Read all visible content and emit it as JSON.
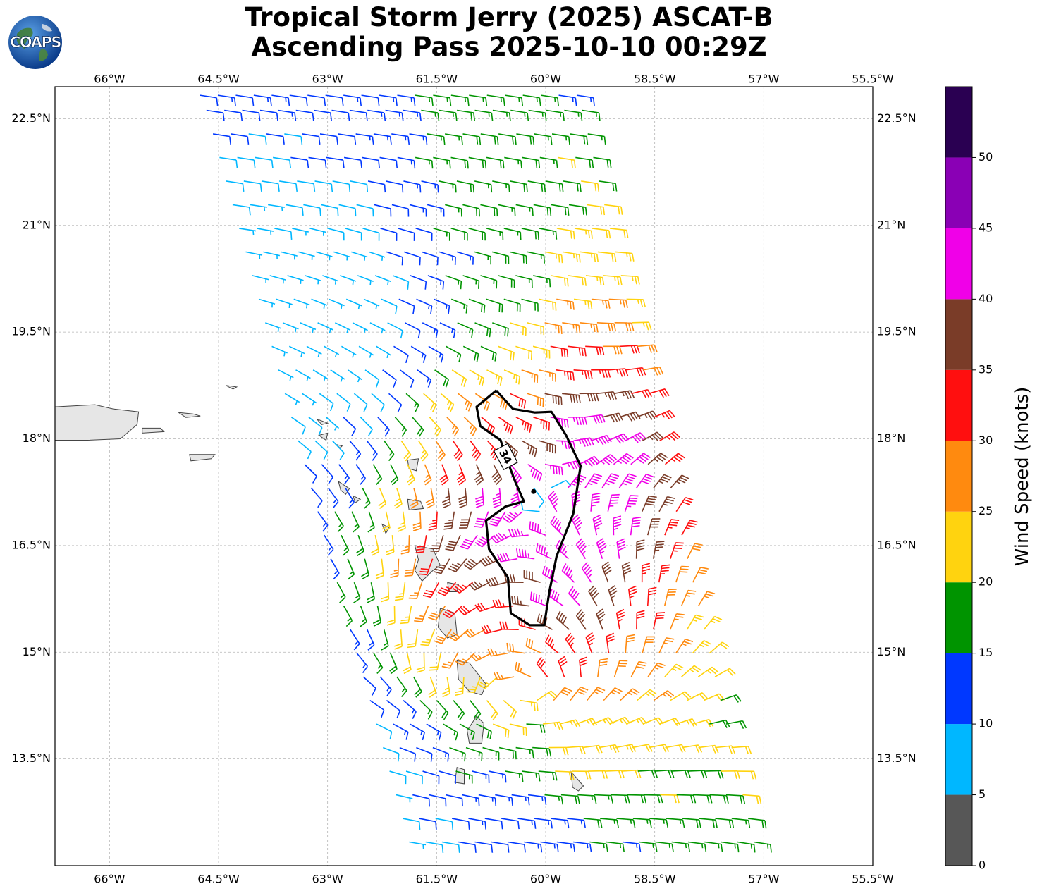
{
  "title": {
    "line1": "Tropical Storm Jerry (2025) ASCAT-B",
    "line2": "Ascending Pass 2025-10-10 00:29Z"
  },
  "logo": {
    "text": "COAPS",
    "icon": "globe-icon"
  },
  "map": {
    "lon_range": [
      -66.75,
      -55.5
    ],
    "lat_range": [
      12.0,
      22.95
    ],
    "lon_ticks": [
      {
        "value": -66.0,
        "label": "66°W"
      },
      {
        "value": -64.5,
        "label": "64.5°W"
      },
      {
        "value": -63.0,
        "label": "63°W"
      },
      {
        "value": -61.5,
        "label": "61.5°W"
      },
      {
        "value": -60.0,
        "label": "60°W"
      },
      {
        "value": -58.5,
        "label": "58.5°W"
      },
      {
        "value": -57.0,
        "label": "57°W"
      },
      {
        "value": -55.5,
        "label": "55.5°W"
      }
    ],
    "lat_ticks": [
      {
        "value": 22.5,
        "label": "22.5°N"
      },
      {
        "value": 21.0,
        "label": "21°N"
      },
      {
        "value": 19.5,
        "label": "19.5°N"
      },
      {
        "value": 18.0,
        "label": "18°N"
      },
      {
        "value": 16.5,
        "label": "16.5°N"
      },
      {
        "value": 15.0,
        "label": "15°N"
      },
      {
        "value": 13.5,
        "label": "13.5°N"
      }
    ],
    "gridlines": true,
    "contour": {
      "label": "34",
      "level_knots": 34,
      "color": "#000000",
      "path": [
        [
          -60.68,
          18.68
        ],
        [
          -60.45,
          18.42
        ],
        [
          -60.15,
          18.37
        ],
        [
          -59.92,
          18.38
        ],
        [
          -59.72,
          18.05
        ],
        [
          -59.52,
          17.62
        ],
        [
          -59.62,
          16.95
        ],
        [
          -59.85,
          16.35
        ],
        [
          -59.95,
          15.85
        ],
        [
          -60.02,
          15.38
        ],
        [
          -60.22,
          15.38
        ],
        [
          -60.48,
          15.55
        ],
        [
          -60.52,
          16.05
        ],
        [
          -60.78,
          16.45
        ],
        [
          -60.82,
          16.85
        ],
        [
          -60.55,
          17.05
        ],
        [
          -60.3,
          17.12
        ],
        [
          -60.42,
          17.4
        ],
        [
          -60.55,
          17.75
        ],
        [
          -60.62,
          17.98
        ],
        [
          -60.9,
          18.18
        ],
        [
          -60.95,
          18.45
        ],
        [
          -60.68,
          18.68
        ]
      ],
      "label_at": [
        -60.55,
        17.75
      ],
      "center": [
        -60.05,
        17.18
      ]
    },
    "wind_barbs": {
      "units": "knots",
      "swath": {
        "bottom_left": [
          -61.9,
          12.0
        ],
        "bottom_right": [
          -56.95,
          12.0
        ],
        "top_left": [
          -64.88,
          22.95
        ],
        "top_right": [
          -59.45,
          22.95
        ]
      }
    },
    "land": [
      {
        "name": "Puerto Rico",
        "points": [
          [
            -66.75,
            18.45
          ],
          [
            -66.2,
            18.48
          ],
          [
            -65.95,
            18.42
          ],
          [
            -65.6,
            18.38
          ],
          [
            -65.62,
            18.2
          ],
          [
            -65.85,
            18.0
          ],
          [
            -66.3,
            17.98
          ],
          [
            -66.75,
            17.98
          ]
        ]
      },
      {
        "name": "Vieques",
        "points": [
          [
            -65.55,
            18.15
          ],
          [
            -65.3,
            18.15
          ],
          [
            -65.25,
            18.1
          ],
          [
            -65.55,
            18.08
          ]
        ]
      },
      {
        "name": "St Croix",
        "points": [
          [
            -64.9,
            17.78
          ],
          [
            -64.55,
            17.78
          ],
          [
            -64.6,
            17.72
          ],
          [
            -64.88,
            17.69
          ]
        ]
      },
      {
        "name": "Virgin Islands",
        "points": [
          [
            -65.05,
            18.37
          ],
          [
            -64.85,
            18.35
          ],
          [
            -64.75,
            18.32
          ],
          [
            -64.95,
            18.3
          ]
        ]
      },
      {
        "name": "Anegada",
        "points": [
          [
            -64.4,
            18.75
          ],
          [
            -64.25,
            18.73
          ],
          [
            -64.3,
            18.7
          ]
        ]
      },
      {
        "name": "Anguilla",
        "points": [
          [
            -63.15,
            18.28
          ],
          [
            -63.0,
            18.22
          ],
          [
            -63.08,
            18.2
          ]
        ]
      },
      {
        "name": "St Martin",
        "points": [
          [
            -63.12,
            18.05
          ],
          [
            -63.0,
            18.08
          ],
          [
            -63.02,
            17.98
          ]
        ]
      },
      {
        "name": "St Barts",
        "points": [
          [
            -62.88,
            17.92
          ],
          [
            -62.8,
            17.9
          ],
          [
            -62.83,
            17.87
          ]
        ]
      },
      {
        "name": "Barbuda",
        "points": [
          [
            -61.9,
            17.7
          ],
          [
            -61.75,
            17.72
          ],
          [
            -61.78,
            17.55
          ],
          [
            -61.88,
            17.58
          ]
        ]
      },
      {
        "name": "Antigua",
        "points": [
          [
            -61.9,
            17.15
          ],
          [
            -61.72,
            17.12
          ],
          [
            -61.68,
            17.02
          ],
          [
            -61.88,
            17.0
          ]
        ]
      },
      {
        "name": "St Kitts",
        "points": [
          [
            -62.85,
            17.4
          ],
          [
            -62.7,
            17.3
          ],
          [
            -62.75,
            17.22
          ],
          [
            -62.82,
            17.28
          ]
        ]
      },
      {
        "name": "Nevis",
        "points": [
          [
            -62.65,
            17.2
          ],
          [
            -62.55,
            17.15
          ],
          [
            -62.62,
            17.1
          ]
        ]
      },
      {
        "name": "Montserrat",
        "points": [
          [
            -62.25,
            16.8
          ],
          [
            -62.15,
            16.75
          ],
          [
            -62.2,
            16.67
          ]
        ]
      },
      {
        "name": "Guadeloupe",
        "points": [
          [
            -61.8,
            16.5
          ],
          [
            -61.55,
            16.45
          ],
          [
            -61.45,
            16.22
          ],
          [
            -61.55,
            16.15
          ],
          [
            -61.7,
            16.0
          ],
          [
            -61.8,
            16.15
          ],
          [
            -61.75,
            16.3
          ]
        ]
      },
      {
        "name": "Marie-Galante",
        "points": [
          [
            -61.35,
            15.98
          ],
          [
            -61.2,
            15.95
          ],
          [
            -61.22,
            15.85
          ],
          [
            -61.33,
            15.85
          ]
        ]
      },
      {
        "name": "Dominica",
        "points": [
          [
            -61.45,
            15.62
          ],
          [
            -61.25,
            15.55
          ],
          [
            -61.22,
            15.25
          ],
          [
            -61.35,
            15.2
          ],
          [
            -61.48,
            15.35
          ]
        ]
      },
      {
        "name": "Martinique",
        "points": [
          [
            -61.22,
            14.88
          ],
          [
            -61.05,
            14.85
          ],
          [
            -60.82,
            14.55
          ],
          [
            -60.88,
            14.4
          ],
          [
            -61.05,
            14.45
          ],
          [
            -61.2,
            14.62
          ]
        ]
      },
      {
        "name": "St Lucia",
        "points": [
          [
            -60.95,
            14.1
          ],
          [
            -60.85,
            14.0
          ],
          [
            -60.88,
            13.72
          ],
          [
            -61.05,
            13.72
          ],
          [
            -61.08,
            13.9
          ]
        ]
      },
      {
        "name": "St Vincent",
        "points": [
          [
            -61.22,
            13.38
          ],
          [
            -61.12,
            13.35
          ],
          [
            -61.12,
            13.15
          ],
          [
            -61.25,
            13.17
          ]
        ]
      },
      {
        "name": "Barbados",
        "points": [
          [
            -59.65,
            13.32
          ],
          [
            -59.48,
            13.12
          ],
          [
            -59.55,
            13.05
          ],
          [
            -59.63,
            13.1
          ]
        ]
      }
    ]
  },
  "colorbar": {
    "label": "Wind Speed (knots)",
    "bins": [
      {
        "from": 0,
        "to": 5,
        "color": "#575757"
      },
      {
        "from": 5,
        "to": 10,
        "color": "#00b7ff"
      },
      {
        "from": 10,
        "to": 15,
        "color": "#0038ff"
      },
      {
        "from": 15,
        "to": 20,
        "color": "#009400"
      },
      {
        "from": 20,
        "to": 25,
        "color": "#ffd30f"
      },
      {
        "from": 25,
        "to": 30,
        "color": "#ff8a0f"
      },
      {
        "from": 30,
        "to": 35,
        "color": "#ff0f0f"
      },
      {
        "from": 35,
        "to": 40,
        "color": "#7a3c28"
      },
      {
        "from": 40,
        "to": 45,
        "color": "#f000e8"
      },
      {
        "from": 45,
        "to": 50,
        "color": "#8a00b5"
      },
      {
        "from": 50,
        "to": 55,
        "color": "#2a0052"
      }
    ],
    "ticks": [
      "0",
      "5",
      "10",
      "15",
      "20",
      "25",
      "30",
      "35",
      "40",
      "45",
      "50"
    ],
    "tick_values": [
      0,
      5,
      10,
      15,
      20,
      25,
      30,
      35,
      40,
      45,
      50
    ],
    "max": 55
  }
}
